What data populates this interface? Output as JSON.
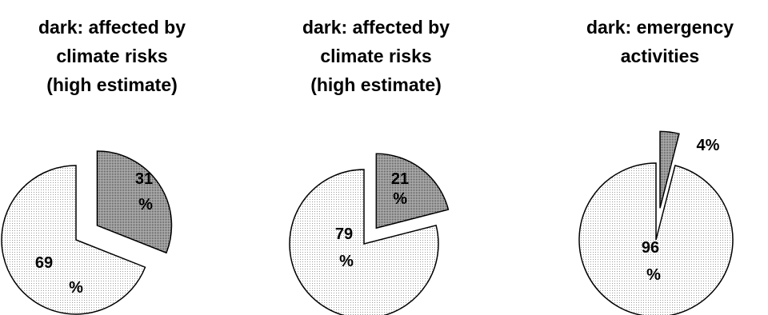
{
  "chart_data": [
    {
      "type": "pie",
      "title": "dark: affected by\nclimate risks\n(high estimate)",
      "slices": [
        {
          "label_lines": [
            "31",
            "%"
          ],
          "value": 31,
          "exploded": true
        },
        {
          "label_lines": [
            "69",
            "%"
          ],
          "value": 69,
          "exploded": false
        }
      ]
    },
    {
      "type": "pie",
      "title": "dark: affected by\nclimate risks\n(high estimate)",
      "slices": [
        {
          "label_lines": [
            "21",
            "%"
          ],
          "value": 21,
          "exploded": true
        },
        {
          "label_lines": [
            "79",
            "%"
          ],
          "value": 79,
          "exploded": false
        }
      ]
    },
    {
      "type": "pie",
      "title": "dark: emergency\nactivities",
      "slices": [
        {
          "label_lines": [
            "4%"
          ],
          "value": 4,
          "exploded": true
        },
        {
          "label_lines": [
            "96",
            "%"
          ],
          "value": 96,
          "exploded": false
        }
      ]
    }
  ],
  "colors": {
    "dark_fill": "#a8a8a8",
    "light_fill": "#f2f2f2",
    "stroke": "#000000"
  }
}
